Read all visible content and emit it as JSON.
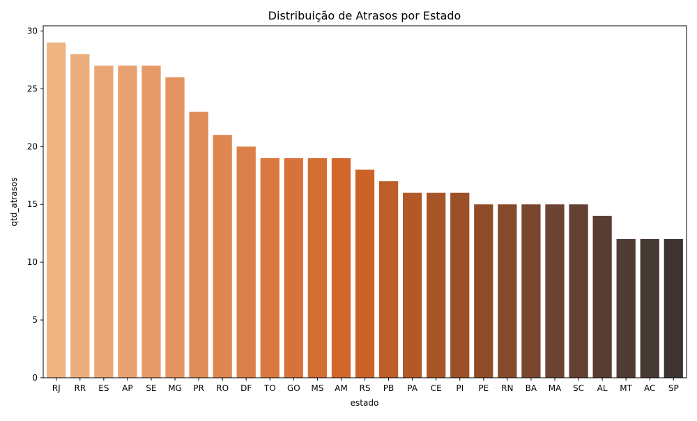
{
  "chart_data": {
    "type": "bar",
    "title": "Distribuição de Atrasos por Estado",
    "xlabel": "estado",
    "ylabel": "qtd_atrasos",
    "ylim": [
      0,
      30.45
    ],
    "yticks": [
      0,
      5,
      10,
      15,
      20,
      25,
      30
    ],
    "yticks_text": [
      "0",
      "5",
      "10",
      "15",
      "20",
      "25",
      "30"
    ],
    "grid": false,
    "categories": [
      "RJ",
      "RR",
      "ES",
      "AP",
      "SE",
      "MG",
      "PR",
      "RO",
      "DF",
      "TO",
      "GO",
      "MS",
      "AM",
      "RS",
      "PB",
      "PA",
      "CE",
      "PI",
      "PE",
      "RN",
      "BA",
      "MA",
      "SC",
      "AL",
      "MT",
      "AC",
      "SP"
    ],
    "values": [
      29,
      28,
      27,
      27,
      27,
      26,
      23,
      21,
      20,
      19,
      19,
      19,
      19,
      18,
      17,
      16,
      16,
      16,
      15,
      15,
      15,
      15,
      15,
      14,
      12,
      12,
      12
    ],
    "colors": [
      "#EDB482",
      "#ECAE7C",
      "#E9A775",
      "#E7A16E",
      "#E59A67",
      "#E39460",
      "#E08C57",
      "#DE864F",
      "#DB7F48",
      "#D97940",
      "#D7733A",
      "#D46D33",
      "#D2672C",
      "#CB6228",
      "#BF5D28",
      "#B35927",
      "#A75427",
      "#9B5028",
      "#8F4C29",
      "#844A2B",
      "#794630",
      "#6D4331",
      "#634033",
      "#583D33",
      "#4F3C33",
      "#463833",
      "#3D3330"
    ]
  }
}
